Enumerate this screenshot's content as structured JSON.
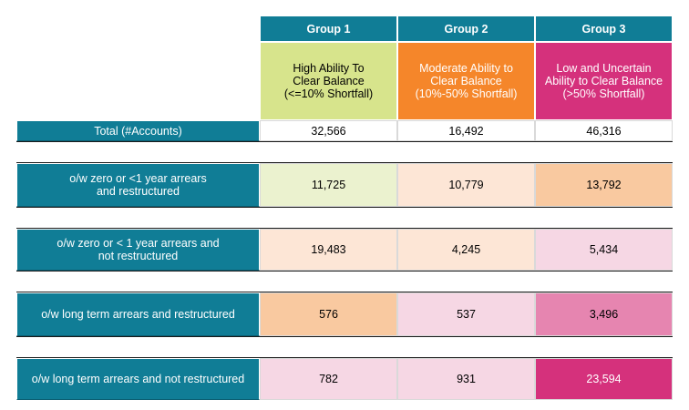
{
  "headers": {
    "group1": "Group 1",
    "group2": "Group 2",
    "group3": "Group 3",
    "desc1": "High Ability To\nClear Balance\n(<=10% Shortfall)",
    "desc2": "Moderate Ability to\nClear Balance\n(10%-50% Shortfall)",
    "desc3": "Low and Uncertain\nAbility to Clear Balance\n(>50% Shortfall)"
  },
  "rows": [
    {
      "label": "Total (#Accounts)",
      "g1": "32,566",
      "g2": "16,492",
      "g3": "46,316"
    },
    {
      "label": "o/w zero or <1 year arrears\nand restructured",
      "g1": "11,725",
      "g2": "10,779",
      "g3": "13,792"
    },
    {
      "label": "o/w zero or < 1 year arrears and\nnot restructured",
      "g1": "19,483",
      "g2": "4,245",
      "g3": "5,434"
    },
    {
      "label": "o/w long term arrears and  restructured",
      "g1": "576",
      "g2": "537",
      "g3": "3,496"
    },
    {
      "label": "o/w long term arrears and not restructured",
      "g1": "782",
      "g2": "931",
      "g3": "23,594"
    }
  ],
  "colors": {
    "teal": "#107d96",
    "green": "#d7e48c",
    "orange": "#f5862a",
    "magenta": "#d5317c"
  }
}
